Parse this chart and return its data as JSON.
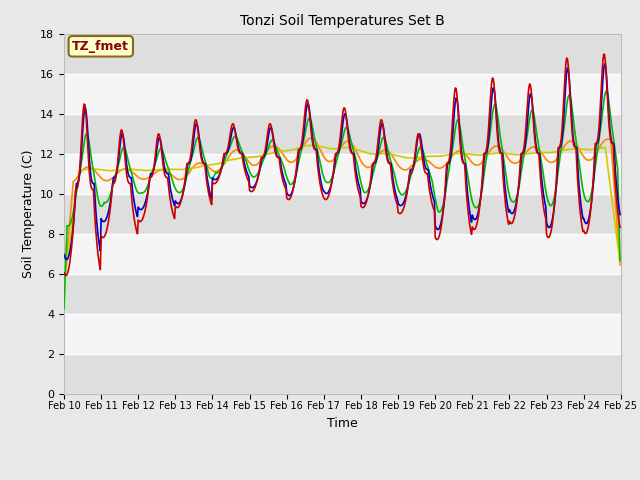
{
  "title": "Tonzi Soil Temperatures Set B",
  "xlabel": "Time",
  "ylabel": "Soil Temperature (C)",
  "annotation": "TZ_fmet",
  "annotation_color": "#8B0000",
  "annotation_bg": "#FFFFCC",
  "annotation_border": "#8B6914",
  "ylim": [
    0,
    18
  ],
  "yticks": [
    0,
    2,
    4,
    6,
    8,
    10,
    12,
    14,
    16,
    18
  ],
  "xtick_labels": [
    "Feb 10",
    "Feb 11",
    "Feb 12",
    "Feb 13",
    "Feb 14",
    "Feb 15",
    "Feb 16",
    "Feb 17",
    "Feb 18",
    "Feb 19",
    "Feb 20",
    "Feb 21",
    "Feb 22",
    "Feb 23",
    "Feb 24",
    "Feb 25"
  ],
  "series_colors": {
    "-2cm": "#CC0000",
    "-4cm": "#0000CC",
    "-8cm": "#00BB00",
    "-16cm": "#FF8800",
    "-32cm": "#CCCC00"
  },
  "lw": 1.2,
  "bg_color": "#E8E8E8",
  "plot_bg": "#F5F5F5",
  "band_color": "#DCDCDC",
  "grid_color": "#FFFFFF",
  "days": 15,
  "n_points": 720
}
